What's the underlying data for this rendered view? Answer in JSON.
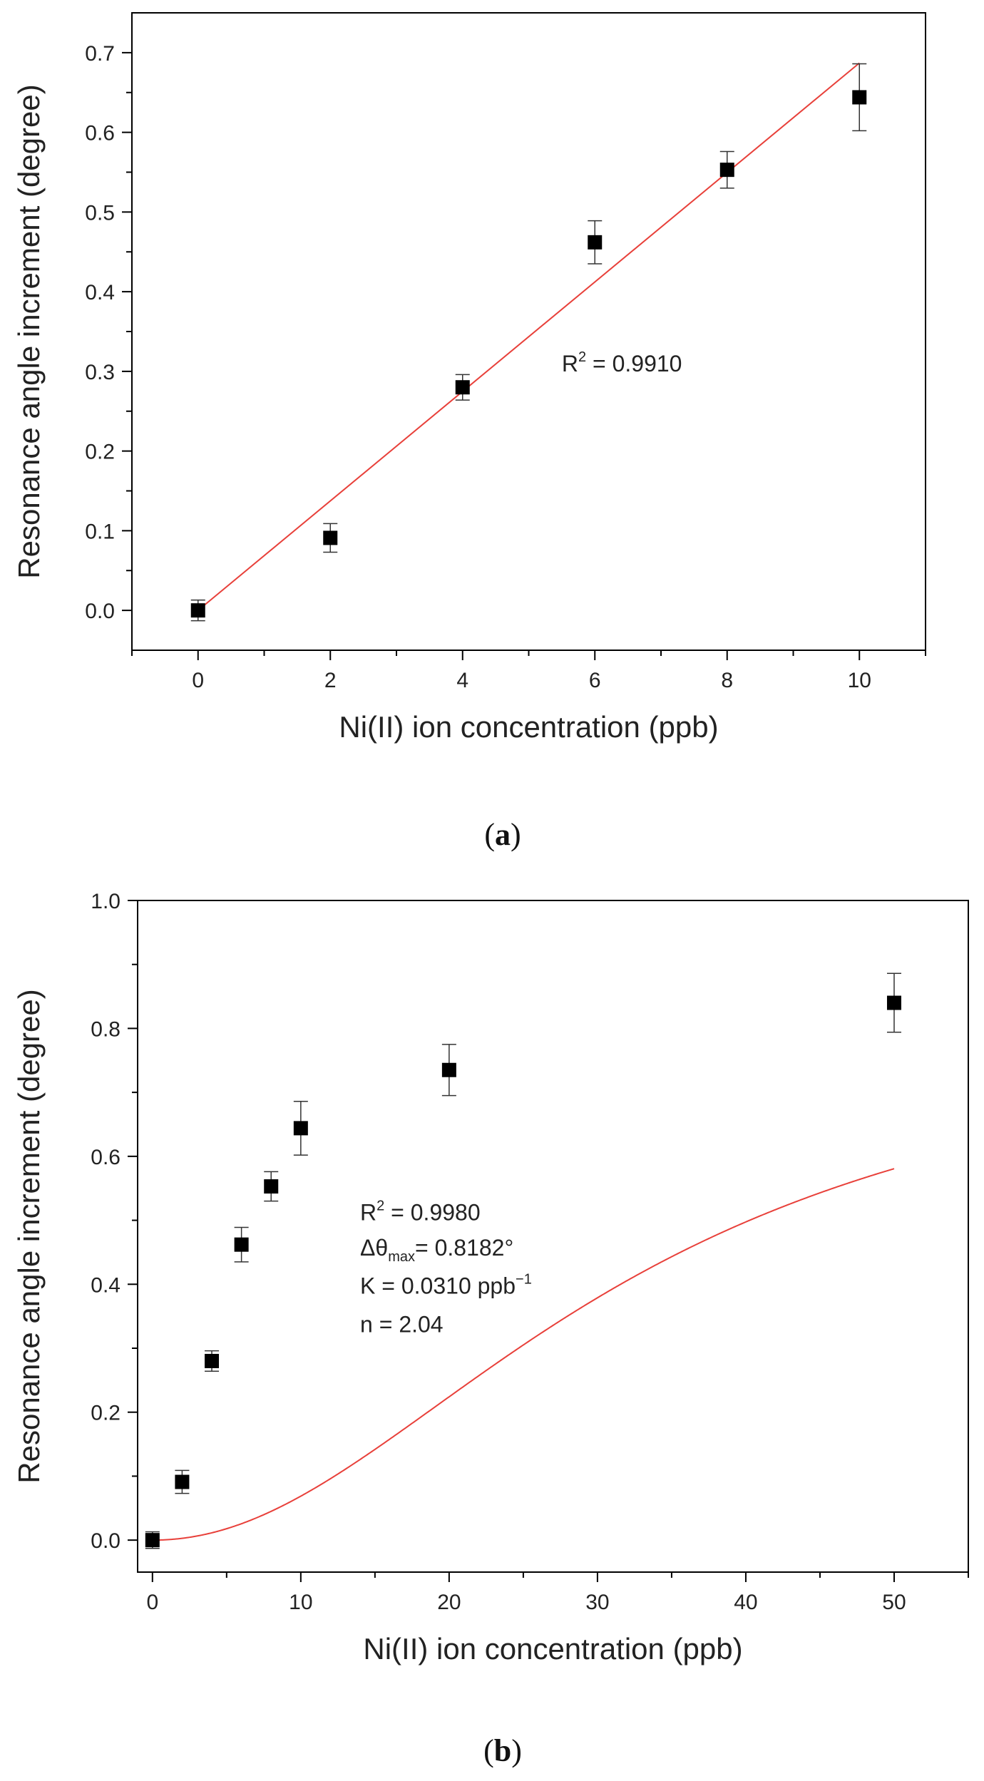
{
  "chart_data": [
    {
      "id": "a",
      "type": "scatter",
      "panel_label_open": "(",
      "panel_label_letter": "a",
      "panel_label_close": ")",
      "xlabel": "Ni(II) ion concentration (ppb)",
      "ylabel": "Resonance angle increment (degree)",
      "xlim": [
        -1,
        11
      ],
      "ylim": [
        -0.05,
        0.75
      ],
      "xticks": [
        "0",
        "2",
        "4",
        "6",
        "8",
        "10"
      ],
      "yticks": [
        "0.0",
        "0.1",
        "0.2",
        "0.3",
        "0.4",
        "0.5",
        "0.6",
        "0.7"
      ],
      "x": [
        0,
        2,
        4,
        6,
        8,
        10
      ],
      "y": [
        0.0,
        0.091,
        0.28,
        0.462,
        0.553,
        0.644
      ],
      "yerr": [
        0.013,
        0.018,
        0.016,
        0.027,
        0.023,
        0.042
      ],
      "fit": {
        "type": "linear",
        "slope": 0.0687,
        "intercept": 0.0,
        "color": "#e8403a"
      },
      "annotation_lines": [
        {
          "text": "R² = 0.9910",
          "x": 5.5,
          "y": 0.3
        }
      ],
      "marker_color": "#000000"
    },
    {
      "id": "b",
      "type": "scatter",
      "panel_label_open": "(",
      "panel_label_letter": "b",
      "panel_label_close": ")",
      "xlabel": "Ni(II) ion concentration (ppb)",
      "ylabel": "Resonance angle increment (degree)",
      "xlim": [
        -1,
        55
      ],
      "ylim": [
        -0.05,
        1.0
      ],
      "xticks": [
        "0",
        "10",
        "20",
        "30",
        "40",
        "50"
      ],
      "yticks": [
        "0.0",
        "0.2",
        "0.4",
        "0.6",
        "0.8",
        "1.0"
      ],
      "x": [
        0,
        2,
        4,
        6,
        8,
        10,
        20,
        50
      ],
      "y": [
        0.0,
        0.091,
        0.28,
        0.462,
        0.553,
        0.644,
        0.735,
        0.84
      ],
      "yerr": [
        0.013,
        0.018,
        0.016,
        0.027,
        0.023,
        0.042,
        0.04,
        0.046
      ],
      "fit": {
        "type": "hill",
        "theta_max": 0.8182,
        "K": 0.031,
        "n": 2.04,
        "color": "#e8403a"
      },
      "annotation_lines": [
        {
          "text": "R² = 0.9980",
          "x": 14,
          "y": 0.5
        },
        {
          "text": "Δθmax= 0.8182°",
          "x": 14,
          "y": 0.445
        },
        {
          "text": "K = 0.0310 ppb⁻¹",
          "x": 14,
          "y": 0.385
        },
        {
          "text": "n = 2.04",
          "x": 14,
          "y": 0.325
        }
      ],
      "marker_color": "#000000"
    }
  ]
}
